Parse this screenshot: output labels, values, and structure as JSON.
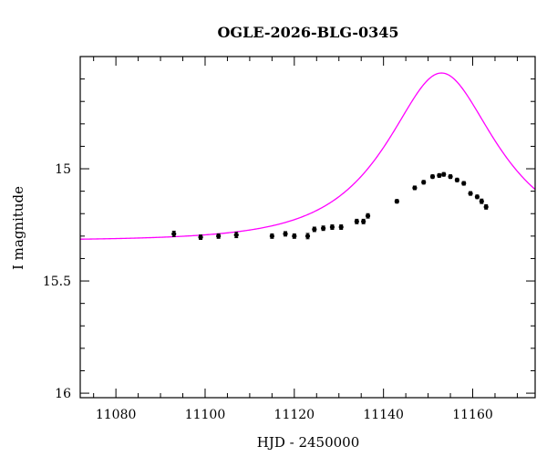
{
  "chart_data": {
    "type": "scatter",
    "title": "OGLE-2026-BLG-0345",
    "xlabel": "HJD - 2450000",
    "ylabel": "I magnitude",
    "xlim": [
      11072,
      11174
    ],
    "ylim": [
      16.02,
      14.5
    ],
    "y_inverted": true,
    "x_major_ticks": [
      11080,
      11100,
      11120,
      11140,
      11160
    ],
    "x_minor_step": 5,
    "y_major_ticks": [
      15,
      15.5,
      16
    ],
    "y_minor_step": 0.1,
    "x_tick_labels": [
      "11080",
      "11100",
      "11120",
      "11140",
      "11160"
    ],
    "y_tick_labels": [
      "15",
      "15.5",
      "16"
    ],
    "model_color": "#ff00ff",
    "grid": false,
    "series": [
      {
        "type": "scatter_errorbars",
        "points": [
          {
            "x": 11093,
            "y": 15.29,
            "err": 0.012
          },
          {
            "x": 11099,
            "y": 15.305,
            "err": 0.01
          },
          {
            "x": 11103,
            "y": 15.3,
            "err": 0.01
          },
          {
            "x": 11107,
            "y": 15.295,
            "err": 0.012
          },
          {
            "x": 11115,
            "y": 15.3,
            "err": 0.01
          },
          {
            "x": 11118,
            "y": 15.29,
            "err": 0.01
          },
          {
            "x": 11120,
            "y": 15.3,
            "err": 0.01
          },
          {
            "x": 11123,
            "y": 15.3,
            "err": 0.012
          },
          {
            "x": 11124.5,
            "y": 15.27,
            "err": 0.01
          },
          {
            "x": 11126.5,
            "y": 15.265,
            "err": 0.01
          },
          {
            "x": 11128.5,
            "y": 15.26,
            "err": 0.01
          },
          {
            "x": 11130.5,
            "y": 15.26,
            "err": 0.01
          },
          {
            "x": 11134,
            "y": 15.235,
            "err": 0.01
          },
          {
            "x": 11135.5,
            "y": 15.235,
            "err": 0.01
          },
          {
            "x": 11136.5,
            "y": 15.21,
            "err": 0.01
          },
          {
            "x": 11143,
            "y": 15.145,
            "err": 0.008
          },
          {
            "x": 11147,
            "y": 15.085,
            "err": 0.008
          },
          {
            "x": 11149,
            "y": 15.06,
            "err": 0.008
          },
          {
            "x": 11151,
            "y": 15.035,
            "err": 0.008
          },
          {
            "x": 11152.5,
            "y": 15.03,
            "err": 0.008
          },
          {
            "x": 11153.5,
            "y": 15.025,
            "err": 0.008
          },
          {
            "x": 11155,
            "y": 15.035,
            "err": 0.008
          },
          {
            "x": 11156.5,
            "y": 15.05,
            "err": 0.008
          },
          {
            "x": 11158,
            "y": 15.065,
            "err": 0.008
          },
          {
            "x": 11159.5,
            "y": 15.11,
            "err": 0.008
          },
          {
            "x": 11161,
            "y": 15.125,
            "err": 0.008
          },
          {
            "x": 11162,
            "y": 15.145,
            "err": 0.01
          },
          {
            "x": 11163,
            "y": 15.17,
            "err": 0.01
          }
        ]
      },
      {
        "type": "model_curve",
        "baseline": 15.32,
        "t0": 11153,
        "tE": 20,
        "u0": 0.56,
        "fs": 1.0
      }
    ]
  }
}
